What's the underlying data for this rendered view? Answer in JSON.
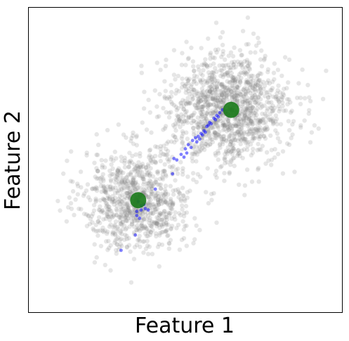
{
  "chart_data": {
    "type": "scatter",
    "title": "",
    "xlabel": "Feature 1",
    "ylabel": "Feature 2",
    "xlim": [
      -4,
      7
    ],
    "ylim": [
      -4,
      7
    ],
    "grid": false,
    "legend": "none",
    "series": [
      {
        "role": "background-points",
        "color": "#808080",
        "opacity": 0.2,
        "clusters": [
          {
            "center": [
              -0.2,
              0.05
            ],
            "std": [
              0.95,
              0.9
            ],
            "count": 900
          },
          {
            "center": [
              2.95,
              3.3
            ],
            "std": [
              1.1,
              1.0
            ],
            "count": 1300
          }
        ]
      },
      {
        "role": "trajectory-points",
        "color": "#0000ff",
        "opacity": 0.5,
        "points": [
          [
            -0.25,
            -1.2
          ],
          [
            -0.1,
            -0.6
          ],
          [
            -0.2,
            -0.35
          ],
          [
            -0.05,
            -0.15
          ],
          [
            -0.15,
            0.0
          ],
          [
            0.1,
            -0.25
          ],
          [
            0.2,
            -0.3
          ],
          [
            0.45,
            0.45
          ],
          [
            1.1,
            1.55
          ],
          [
            1.05,
            1.0
          ],
          [
            1.5,
            1.9
          ],
          [
            1.6,
            2.05
          ],
          [
            1.75,
            2.2
          ],
          [
            1.85,
            2.3
          ],
          [
            1.95,
            2.35
          ],
          [
            2.05,
            2.45
          ],
          [
            2.15,
            2.55
          ],
          [
            2.25,
            2.7
          ],
          [
            2.35,
            2.85
          ],
          [
            2.5,
            3.0
          ],
          [
            2.6,
            3.1
          ],
          [
            2.7,
            3.2
          ],
          [
            2.8,
            3.3
          ],
          [
            1.45,
            1.6
          ],
          [
            1.55,
            1.75
          ],
          [
            1.7,
            1.95
          ],
          [
            1.9,
            2.15
          ],
          [
            2.0,
            2.25
          ],
          [
            2.2,
            2.5
          ],
          [
            2.4,
            2.8
          ],
          [
            1.2,
            1.5
          ],
          [
            1.35,
            1.7
          ],
          [
            2.55,
            2.95
          ],
          [
            2.65,
            3.05
          ],
          [
            -0.75,
            -1.75
          ],
          [
            -0.2,
            -0.5
          ],
          [
            -0.05,
            -0.3
          ],
          [
            0.05,
            -0.1
          ],
          [
            2.3,
            2.75
          ],
          [
            2.1,
            2.4
          ]
        ]
      },
      {
        "role": "centroids",
        "color": "#1a7a1a",
        "opacity": 0.9,
        "points": [
          [
            -0.15,
            0.05
          ],
          [
            3.1,
            3.3
          ]
        ]
      }
    ]
  }
}
